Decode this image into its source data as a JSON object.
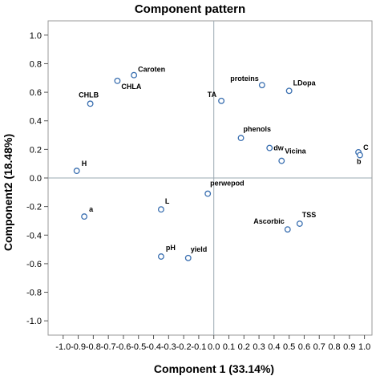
{
  "chart_data": {
    "type": "scatter",
    "title": "Component pattern",
    "xlabel": "Component 1 (33.14%)",
    "ylabel": "Component2 (18.48%)",
    "xlim": [
      -1.1,
      1.05
    ],
    "ylim": [
      -1.1,
      1.1
    ],
    "x_ticks": [
      "-1.0",
      "-0.9",
      "-0.8",
      "-0.7",
      "-0.6",
      "-0.5",
      "-0.4",
      "-0.3",
      "-0.2",
      "-0.1",
      "0.0",
      "0.1",
      "0.2",
      "0.3",
      "0.4",
      "0.5",
      "0.6",
      "0.7",
      "0.8",
      "0.9",
      "1.0"
    ],
    "y_ticks": [
      "1.0",
      "0.8",
      "0.6",
      "0.4",
      "0.2",
      "0.0",
      "-0.2",
      "-0.4",
      "-0.6",
      "-0.8",
      "-1.0"
    ],
    "reference_lines": {
      "x": 0,
      "y": 0
    },
    "marker_color": "#3a6fb0",
    "points": [
      {
        "label": "Caroten",
        "x": -0.53,
        "y": 0.72
      },
      {
        "label": "CHLA",
        "x": -0.64,
        "y": 0.68
      },
      {
        "label": "CHLB",
        "x": -0.82,
        "y": 0.52
      },
      {
        "label": "H",
        "x": -0.91,
        "y": 0.05
      },
      {
        "label": "a",
        "x": -0.86,
        "y": -0.27
      },
      {
        "label": "L",
        "x": -0.35,
        "y": -0.22
      },
      {
        "label": "pH",
        "x": -0.35,
        "y": -0.55
      },
      {
        "label": "yield",
        "x": -0.17,
        "y": -0.56
      },
      {
        "label": "perwepod",
        "x": -0.04,
        "y": -0.11
      },
      {
        "label": "TA",
        "x": 0.05,
        "y": 0.54
      },
      {
        "label": "proteins",
        "x": 0.32,
        "y": 0.65
      },
      {
        "label": "LDopa",
        "x": 0.5,
        "y": 0.61
      },
      {
        "label": "phenols",
        "x": 0.18,
        "y": 0.28
      },
      {
        "label": "dw",
        "x": 0.37,
        "y": 0.21
      },
      {
        "label": "Vicina",
        "x": 0.45,
        "y": 0.12
      },
      {
        "label": "C",
        "x": 0.96,
        "y": 0.18
      },
      {
        "label": "b",
        "x": 0.97,
        "y": 0.16
      },
      {
        "label": "Ascorbic",
        "x": 0.49,
        "y": -0.36
      },
      {
        "label": "TSS",
        "x": 0.57,
        "y": -0.32
      }
    ]
  }
}
